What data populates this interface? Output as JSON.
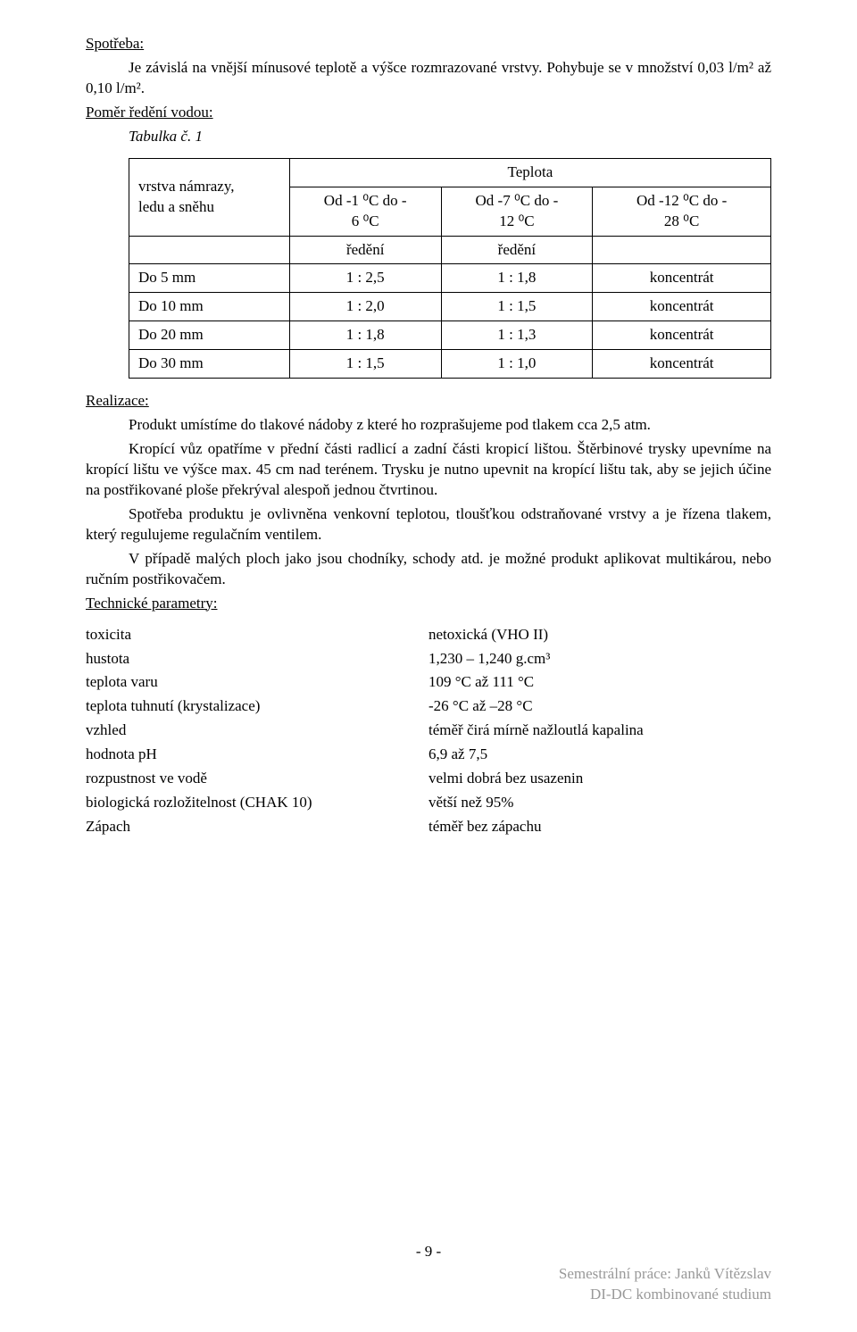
{
  "headings": {
    "spotreba": "Spotřeba:",
    "pomer": "Poměr ředění vodou:",
    "tabulka": "Tabulka č. 1",
    "realizace": "Realizace:",
    "technicke": "Technické parametry:"
  },
  "intro": "Je závislá na vnější mínusové teplotě a výšce rozmrazované vrstvy. Pohybuje se v množství 0,03 l/m² až 0,10 l/m².",
  "table": {
    "corner_top": "vrstva námrazy,",
    "corner_bottom": "ledu a sněhu",
    "teplota_header": "Teplota",
    "temp1_top": "Od -1 ⁰C do -",
    "temp1_bot": "6 ⁰C",
    "temp2_top": "Od -7 ⁰C do -",
    "temp2_bot": "12 ⁰C",
    "temp3_top": "Od -12 ⁰C do -",
    "temp3_bot": "28 ⁰C",
    "redeni": "ředění",
    "rows": [
      {
        "label": "Do   5 mm",
        "c1": "1 : 2,5",
        "c2": "1 : 1,8",
        "c3": "koncentrát"
      },
      {
        "label": "Do 10 mm",
        "c1": "1 : 2,0",
        "c2": "1 : 1,5",
        "c3": "koncentrát"
      },
      {
        "label": "Do 20 mm",
        "c1": "1 : 1,8",
        "c2": "1 : 1,3",
        "c3": "koncentrát"
      },
      {
        "label": "Do 30 mm",
        "c1": "1 : 1,5",
        "c2": "1 : 1,0",
        "c3": "koncentrát"
      }
    ]
  },
  "realizace": {
    "p1": "Produkt umístíme do tlakové nádoby z které ho rozprašujeme pod tlakem cca 2,5 atm.",
    "p2": "Kropící vůz opatříme v přední části radlicí a zadní části kropicí lištou. Štěrbinové trysky upevníme na kropící lištu ve výšce max. 45 cm nad terénem. Trysku je nutno upevnit na kropící lištu tak, aby se jejich účine na postřikované ploše překrýval alespoň jednou čtvrtinou.",
    "p3": "Spotřeba produktu je ovlivněna venkovní teplotou, tloušťkou odstraňované vrstvy a je řízena tlakem, který regulujeme regulačním ventilem.",
    "p4": "V případě malých ploch jako jsou chodníky, schody atd. je možné produkt aplikovat multikárou, nebo ručním postřikovačem."
  },
  "params": [
    {
      "k": "toxicita",
      "v": "netoxická (VHO II)"
    },
    {
      "k": "hustota",
      "v": "1,230 – 1,240 g.cm³"
    },
    {
      "k": "teplota varu",
      "v": "109 °C až 111 °C"
    },
    {
      "k": "teplota tuhnutí (krystalizace)",
      "v": "-26 °C až –28 °C"
    },
    {
      "k": "vzhled",
      "v": "téměř čirá mírně nažloutlá kapalina"
    },
    {
      "k": "hodnota pH",
      "v": "6,9 až 7,5"
    },
    {
      "k": "rozpustnost ve vodě",
      "v": "velmi dobrá bez usazenin"
    },
    {
      "k": "biologická rozložitelnost (CHAK 10)",
      "v": "větší než 95%"
    },
    {
      "k": "Zápach",
      "v": "téměř bez zápachu"
    }
  ],
  "footer": {
    "page": "- 9 -",
    "line1": "Semestrální práce: Janků Vítězslav",
    "line2": "DI-DC  kombinované studium"
  },
  "colors": {
    "text": "#000000",
    "background": "#ffffff",
    "footer_muted": "#999999",
    "border": "#000000"
  },
  "fonts": {
    "body_family": "Times New Roman",
    "body_size_pt": 12
  }
}
